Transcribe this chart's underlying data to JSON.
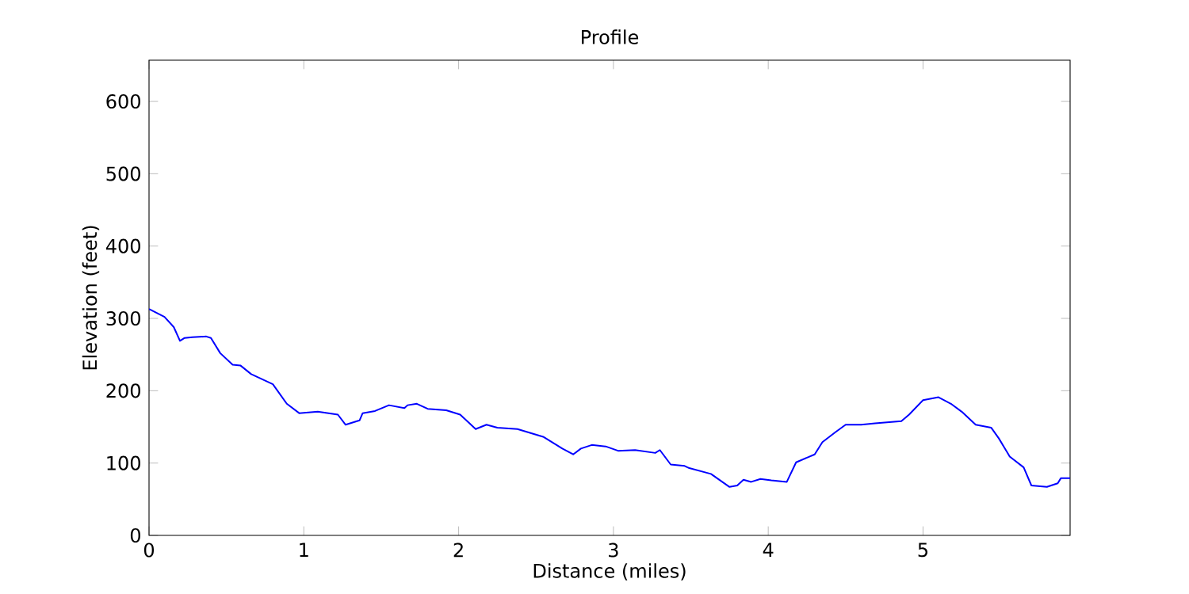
{
  "chart_data": {
    "type": "line",
    "title": "Profile",
    "xlabel": "Distance (miles)",
    "ylabel": "Elevation (feet)",
    "xlim": [
      0,
      5.95
    ],
    "ylim": [
      0,
      657
    ],
    "xticks": [
      0,
      1,
      2,
      3,
      4,
      5
    ],
    "yticks": [
      0,
      100,
      200,
      300,
      400,
      500,
      600
    ],
    "grid": false,
    "series": [
      {
        "color": "#0000ff",
        "x": [
          0,
          0.1,
          0.16,
          0.2,
          0.23,
          0.28,
          0.37,
          0.4,
          0.46,
          0.54,
          0.59,
          0.66,
          0.8,
          0.89,
          0.97,
          1.09,
          1.22,
          1.27,
          1.36,
          1.38,
          1.46,
          1.55,
          1.65,
          1.67,
          1.73,
          1.8,
          1.92,
          2.01,
          2.11,
          2.18,
          2.25,
          2.38,
          2.55,
          2.67,
          2.74,
          2.79,
          2.86,
          2.95,
          3.03,
          3.14,
          3.27,
          3.3,
          3.37,
          3.46,
          3.49,
          3.63,
          3.75,
          3.8,
          3.84,
          3.89,
          3.95,
          4.02,
          4.12,
          4.18,
          4.3,
          4.35,
          4.43,
          4.5,
          4.6,
          4.69,
          4.86,
          4.91,
          5.0,
          5.1,
          5.18,
          5.25,
          5.34,
          5.44,
          5.49,
          5.56,
          5.65,
          5.7,
          5.8,
          5.87,
          5.89,
          5.95
        ],
        "values": [
          313,
          302,
          288,
          269,
          273,
          274,
          275,
          273,
          252,
          236,
          235,
          223,
          209,
          182,
          169,
          171,
          167,
          153,
          159,
          169,
          172,
          180,
          176,
          180,
          182,
          175,
          173,
          167,
          147,
          153,
          149,
          147,
          136,
          120,
          112,
          120,
          125,
          123,
          117,
          118,
          114,
          118,
          98,
          96,
          93,
          85,
          67,
          69,
          77,
          74,
          78,
          76,
          74,
          101,
          112,
          129,
          142,
          153,
          153,
          155,
          158,
          167,
          187,
          191,
          182,
          171,
          153,
          149,
          134,
          109,
          94,
          69,
          67,
          72,
          79,
          79
        ]
      }
    ]
  }
}
